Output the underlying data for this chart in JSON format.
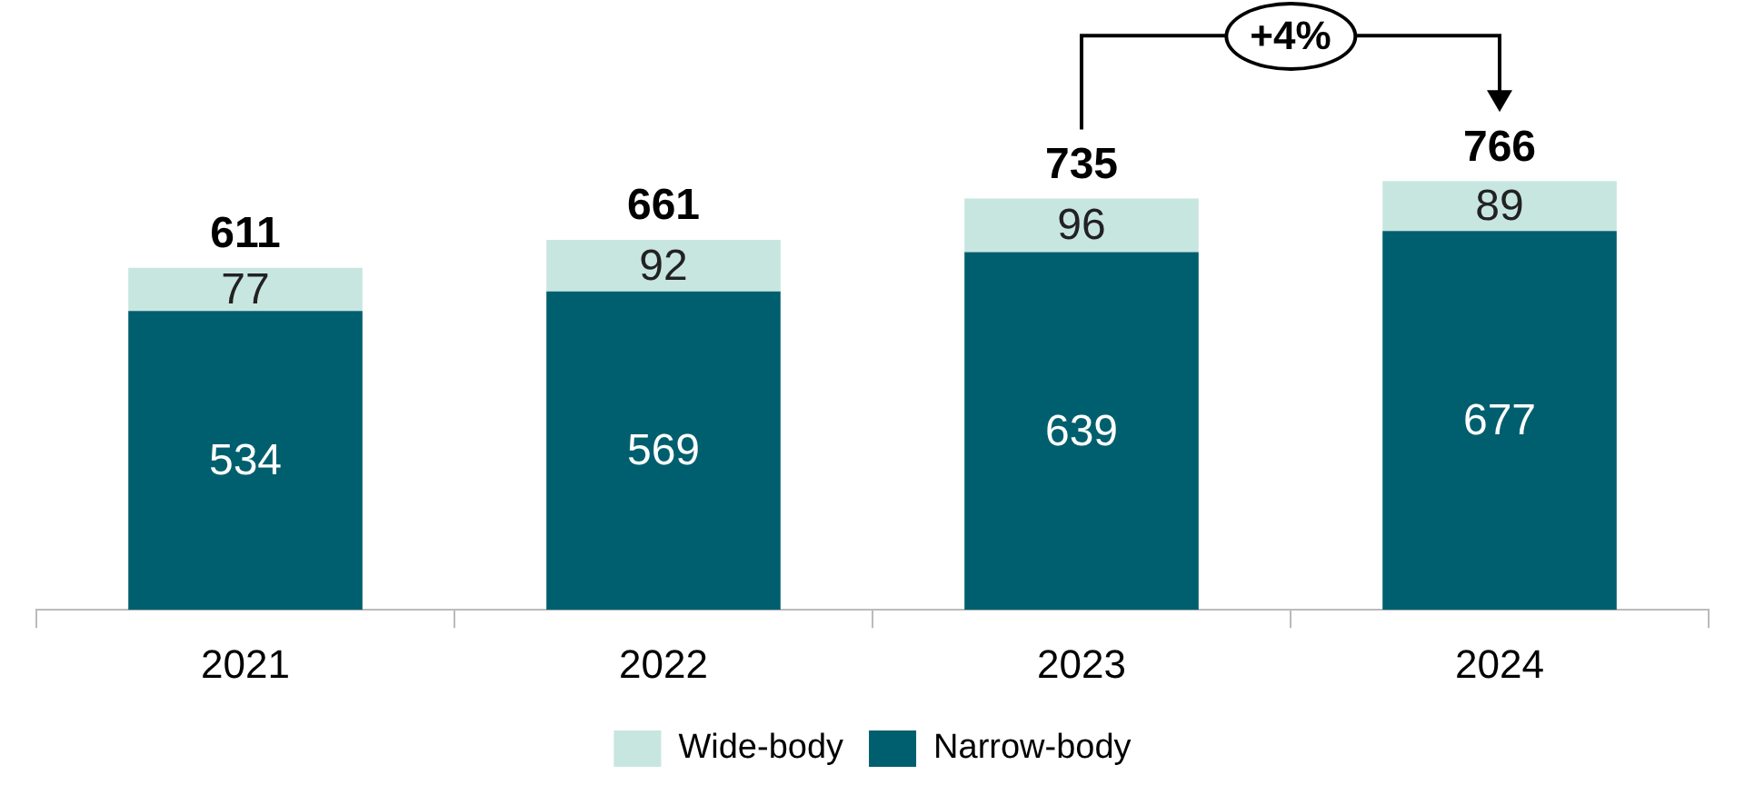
{
  "chart_data": {
    "type": "bar",
    "stacked": true,
    "categories": [
      "2021",
      "2022",
      "2023",
      "2024"
    ],
    "series": [
      {
        "name": "Narrow-body",
        "color": "#005f6e",
        "values": [
          534,
          569,
          639,
          677
        ]
      },
      {
        "name": "Wide-body",
        "color": "#c8e6e0",
        "values": [
          77,
          92,
          96,
          89
        ]
      }
    ],
    "data_labels": true,
    "totals": [
      "611",
      "661",
      "735",
      "766"
    ],
    "legend": "bottom",
    "annotations": [
      "+4%"
    ]
  }
}
